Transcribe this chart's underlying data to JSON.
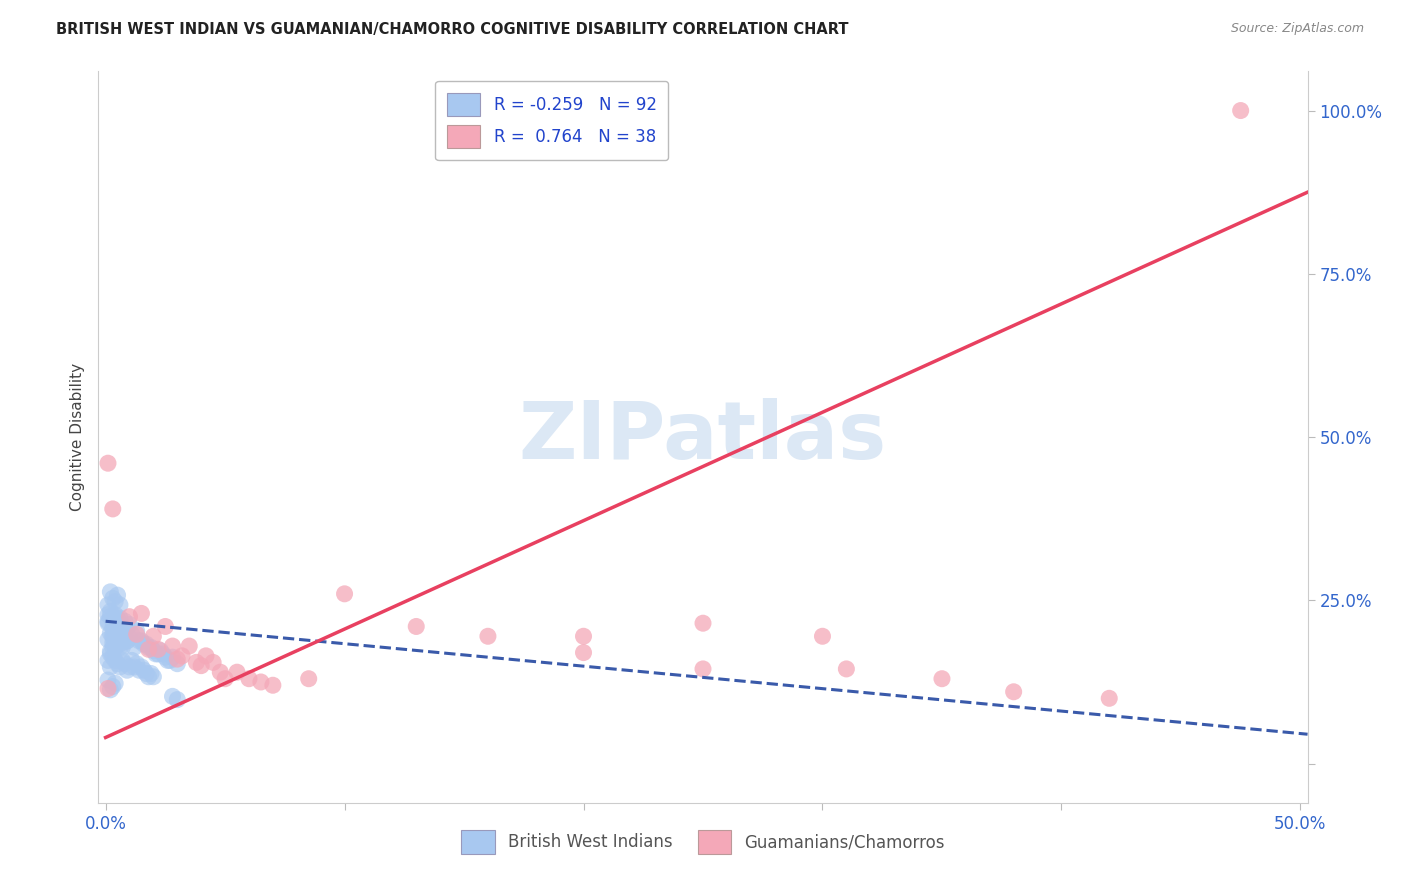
{
  "title": "BRITISH WEST INDIAN VS GUAMANIAN/CHAMORRO COGNITIVE DISABILITY CORRELATION CHART",
  "source": "Source: ZipAtlas.com",
  "ylabel": "Cognitive Disability",
  "xlim": [
    -0.003,
    0.503
  ],
  "ylim": [
    -0.06,
    1.06
  ],
  "R_blue": -0.259,
  "N_blue": 92,
  "R_pink": 0.764,
  "N_pink": 38,
  "blue_color": "#A8C8F0",
  "pink_color": "#F4A8B8",
  "blue_line_color": "#3A5AAA",
  "pink_line_color": "#E84060",
  "watermark": "ZIPatlas",
  "watermark_color": "#DCE8F5",
  "background_color": "#FFFFFF",
  "grid_color": "#CCCCCC",
  "blue_dots": [
    [
      0.001,
      0.19
    ],
    [
      0.002,
      0.2
    ],
    [
      0.003,
      0.185
    ],
    [
      0.001,
      0.215
    ],
    [
      0.004,
      0.195
    ],
    [
      0.002,
      0.225
    ],
    [
      0.005,
      0.205
    ],
    [
      0.003,
      0.178
    ],
    [
      0.006,
      0.198
    ],
    [
      0.004,
      0.188
    ],
    [
      0.007,
      0.193
    ],
    [
      0.005,
      0.212
    ],
    [
      0.002,
      0.172
    ],
    [
      0.003,
      0.208
    ],
    [
      0.001,
      0.218
    ],
    [
      0.006,
      0.183
    ],
    [
      0.008,
      0.198
    ],
    [
      0.004,
      0.178
    ],
    [
      0.009,
      0.188
    ],
    [
      0.005,
      0.222
    ],
    [
      0.003,
      0.193
    ],
    [
      0.007,
      0.208
    ],
    [
      0.002,
      0.168
    ],
    [
      0.004,
      0.213
    ],
    [
      0.006,
      0.178
    ],
    [
      0.008,
      0.193
    ],
    [
      0.005,
      0.183
    ],
    [
      0.003,
      0.198
    ],
    [
      0.007,
      0.178
    ],
    [
      0.009,
      0.188
    ],
    [
      0.011,
      0.198
    ],
    [
      0.013,
      0.203
    ],
    [
      0.015,
      0.188
    ],
    [
      0.012,
      0.178
    ],
    [
      0.01,
      0.193
    ],
    [
      0.014,
      0.188
    ],
    [
      0.016,
      0.183
    ],
    [
      0.018,
      0.178
    ],
    [
      0.02,
      0.173
    ],
    [
      0.022,
      0.168
    ],
    [
      0.017,
      0.183
    ],
    [
      0.019,
      0.178
    ],
    [
      0.021,
      0.168
    ],
    [
      0.023,
      0.173
    ],
    [
      0.025,
      0.163
    ],
    [
      0.027,
      0.158
    ],
    [
      0.028,
      0.163
    ],
    [
      0.024,
      0.168
    ],
    [
      0.026,
      0.158
    ],
    [
      0.03,
      0.153
    ],
    [
      0.001,
      0.228
    ],
    [
      0.002,
      0.233
    ],
    [
      0.003,
      0.218
    ],
    [
      0.004,
      0.228
    ],
    [
      0.005,
      0.218
    ],
    [
      0.006,
      0.223
    ],
    [
      0.007,
      0.213
    ],
    [
      0.008,
      0.218
    ],
    [
      0.009,
      0.208
    ],
    [
      0.01,
      0.213
    ],
    [
      0.001,
      0.158
    ],
    [
      0.002,
      0.148
    ],
    [
      0.003,
      0.163
    ],
    [
      0.004,
      0.158
    ],
    [
      0.005,
      0.153
    ],
    [
      0.006,
      0.148
    ],
    [
      0.007,
      0.158
    ],
    [
      0.008,
      0.153
    ],
    [
      0.009,
      0.143
    ],
    [
      0.01,
      0.148
    ],
    [
      0.011,
      0.158
    ],
    [
      0.012,
      0.148
    ],
    [
      0.013,
      0.153
    ],
    [
      0.014,
      0.143
    ],
    [
      0.015,
      0.148
    ],
    [
      0.016,
      0.143
    ],
    [
      0.017,
      0.138
    ],
    [
      0.018,
      0.133
    ],
    [
      0.019,
      0.138
    ],
    [
      0.02,
      0.133
    ],
    [
      0.001,
      0.243
    ],
    [
      0.002,
      0.263
    ],
    [
      0.003,
      0.253
    ],
    [
      0.004,
      0.248
    ],
    [
      0.005,
      0.258
    ],
    [
      0.006,
      0.243
    ],
    [
      0.001,
      0.128
    ],
    [
      0.002,
      0.113
    ],
    [
      0.003,
      0.118
    ],
    [
      0.004,
      0.123
    ],
    [
      0.03,
      0.098
    ],
    [
      0.028,
      0.103
    ]
  ],
  "pink_dots": [
    [
      0.001,
      0.46
    ],
    [
      0.003,
      0.39
    ],
    [
      0.01,
      0.225
    ],
    [
      0.013,
      0.198
    ],
    [
      0.015,
      0.23
    ],
    [
      0.018,
      0.175
    ],
    [
      0.02,
      0.195
    ],
    [
      0.022,
      0.175
    ],
    [
      0.025,
      0.21
    ],
    [
      0.028,
      0.18
    ],
    [
      0.03,
      0.16
    ],
    [
      0.032,
      0.165
    ],
    [
      0.035,
      0.18
    ],
    [
      0.038,
      0.155
    ],
    [
      0.04,
      0.15
    ],
    [
      0.042,
      0.165
    ],
    [
      0.045,
      0.155
    ],
    [
      0.048,
      0.14
    ],
    [
      0.05,
      0.13
    ],
    [
      0.055,
      0.14
    ],
    [
      0.06,
      0.13
    ],
    [
      0.065,
      0.125
    ],
    [
      0.07,
      0.12
    ],
    [
      0.085,
      0.13
    ],
    [
      0.1,
      0.26
    ],
    [
      0.13,
      0.21
    ],
    [
      0.16,
      0.195
    ],
    [
      0.2,
      0.195
    ],
    [
      0.2,
      0.17
    ],
    [
      0.25,
      0.215
    ],
    [
      0.25,
      0.145
    ],
    [
      0.3,
      0.195
    ],
    [
      0.31,
      0.145
    ],
    [
      0.35,
      0.13
    ],
    [
      0.38,
      0.11
    ],
    [
      0.42,
      0.1
    ],
    [
      0.475,
      1.0
    ],
    [
      0.001,
      0.115
    ]
  ],
  "blue_trend_x": [
    0.0,
    0.503
  ],
  "blue_trend_y": [
    0.218,
    0.045
  ],
  "pink_trend_x": [
    0.0,
    0.503
  ],
  "pink_trend_y": [
    0.04,
    0.875
  ]
}
